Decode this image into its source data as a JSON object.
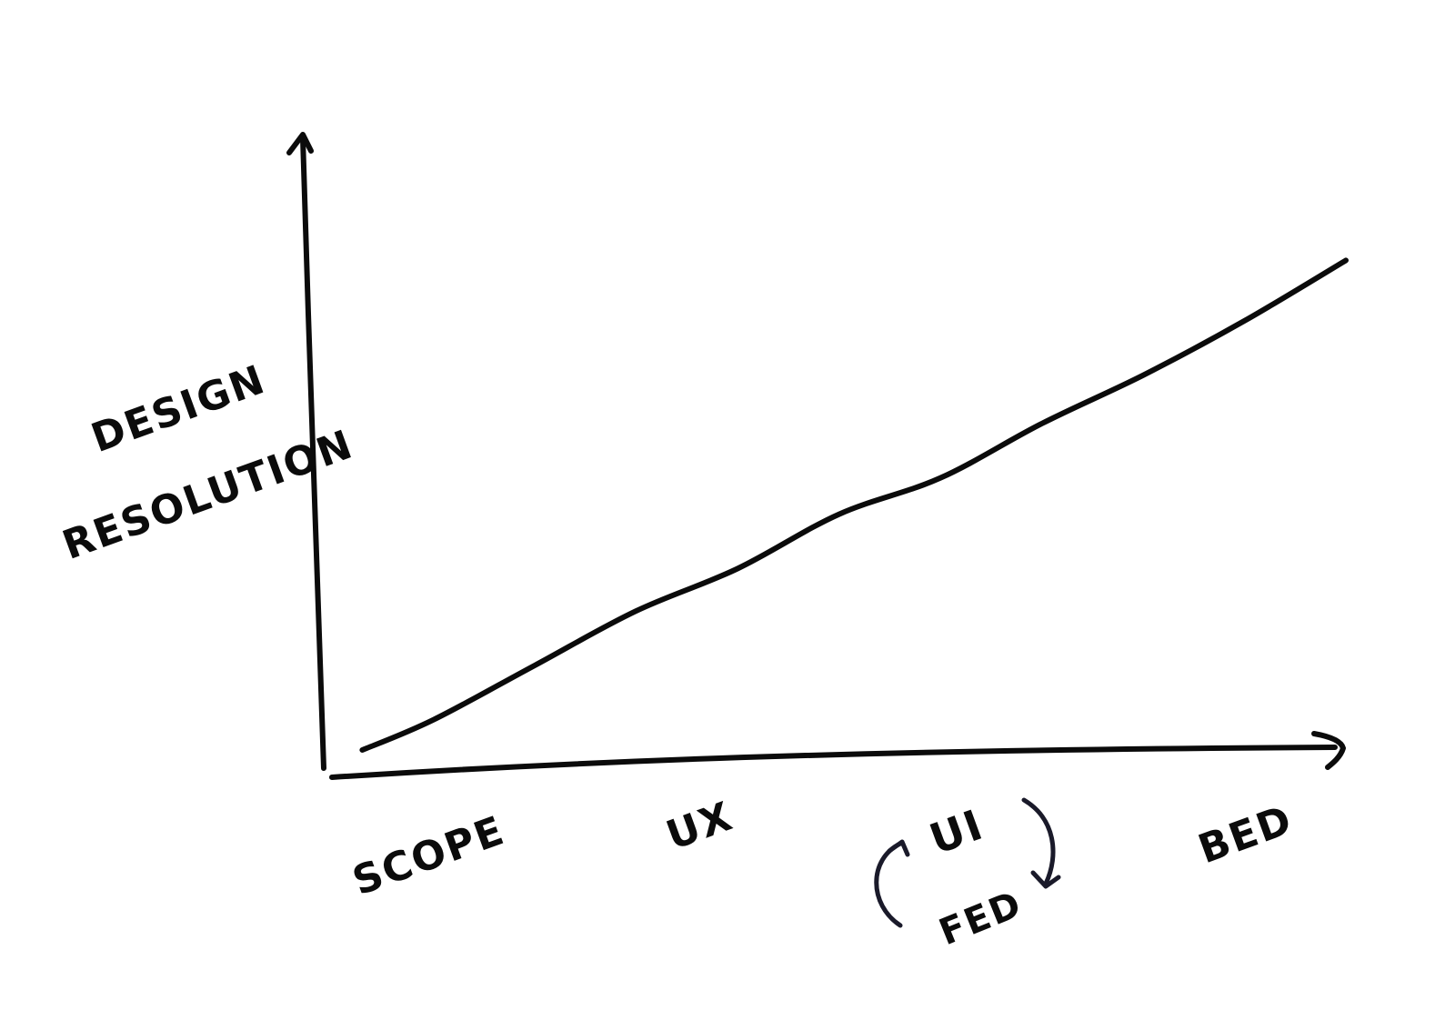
{
  "chart_data": {
    "type": "line",
    "title": "",
    "xlabel": "",
    "ylabel": "DESIGN RESOLUTION",
    "ylabel_lines": [
      "DESIGN",
      "RESOLUTION"
    ],
    "categories": [
      "SCOPE",
      "UX",
      "UI",
      "FED",
      "BED"
    ],
    "ui_fed_cycle": true,
    "axis_arrows": true,
    "grid": false,
    "legend": "none",
    "ylim": [
      0,
      1
    ],
    "line_color": "#0b0b0b",
    "series": [
      {
        "name": "",
        "x": [
          0.03,
          0.1,
          0.2,
          0.3,
          0.4,
          0.5,
          0.6,
          0.7,
          0.8,
          0.9,
          1.0
        ],
        "values": [
          0.03,
          0.08,
          0.17,
          0.26,
          0.33,
          0.42,
          0.48,
          0.57,
          0.65,
          0.74,
          0.84
        ]
      }
    ]
  }
}
